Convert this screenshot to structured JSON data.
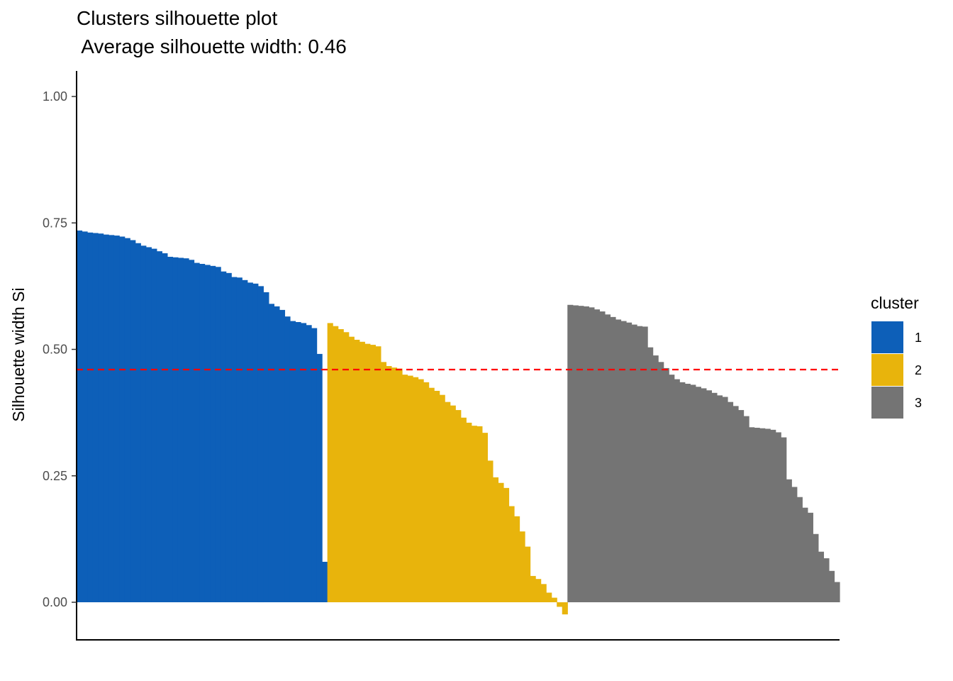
{
  "chart_data": {
    "type": "bar",
    "title": "Clusters silhouette plot",
    "subtitle": " Average silhouette width: 0.46",
    "ylabel": "Silhouette width Si",
    "xlabel": "",
    "ylim": [
      -0.075,
      1.05
    ],
    "yticks": [
      0.0,
      0.25,
      0.5,
      0.75,
      1.0
    ],
    "ytick_labels": [
      "0.00",
      "0.25",
      "0.50",
      "0.75",
      "1.00"
    ],
    "average_line": {
      "value": 0.46,
      "color": "#FF0000",
      "style": "dashed"
    },
    "legend": {
      "title": "cluster",
      "position": "right"
    },
    "grid": false,
    "series": [
      {
        "name": "1",
        "color": "#0D5FB8",
        "values": [
          0.735,
          0.733,
          0.731,
          0.73,
          0.729,
          0.727,
          0.726,
          0.725,
          0.723,
          0.72,
          0.716,
          0.71,
          0.705,
          0.702,
          0.699,
          0.694,
          0.69,
          0.683,
          0.682,
          0.681,
          0.68,
          0.677,
          0.671,
          0.669,
          0.667,
          0.665,
          0.663,
          0.654,
          0.651,
          0.643,
          0.642,
          0.637,
          0.632,
          0.63,
          0.625,
          0.613,
          0.59,
          0.585,
          0.578,
          0.565,
          0.556,
          0.554,
          0.552,
          0.548,
          0.542,
          0.491,
          0.08
        ]
      },
      {
        "name": "2",
        "color": "#E8B40C",
        "values": [
          0.552,
          0.546,
          0.54,
          0.534,
          0.525,
          0.519,
          0.515,
          0.511,
          0.509,
          0.506,
          0.475,
          0.467,
          0.464,
          0.462,
          0.45,
          0.448,
          0.445,
          0.441,
          0.435,
          0.424,
          0.418,
          0.41,
          0.396,
          0.389,
          0.38,
          0.365,
          0.355,
          0.349,
          0.348,
          0.335,
          0.28,
          0.247,
          0.236,
          0.226,
          0.19,
          0.17,
          0.14,
          0.11,
          0.052,
          0.046,
          0.036,
          0.019,
          0.009,
          -0.009,
          -0.024
        ]
      },
      {
        "name": "3",
        "color": "#747474",
        "values": [
          0.588,
          0.587,
          0.586,
          0.585,
          0.583,
          0.579,
          0.575,
          0.569,
          0.564,
          0.559,
          0.556,
          0.553,
          0.549,
          0.546,
          0.545,
          0.504,
          0.488,
          0.475,
          0.463,
          0.45,
          0.441,
          0.435,
          0.432,
          0.43,
          0.426,
          0.423,
          0.419,
          0.414,
          0.409,
          0.406,
          0.396,
          0.388,
          0.38,
          0.368,
          0.346,
          0.345,
          0.344,
          0.343,
          0.341,
          0.336,
          0.326,
          0.243,
          0.228,
          0.208,
          0.187,
          0.177,
          0.135,
          0.1,
          0.087,
          0.062,
          0.04
        ]
      }
    ]
  }
}
